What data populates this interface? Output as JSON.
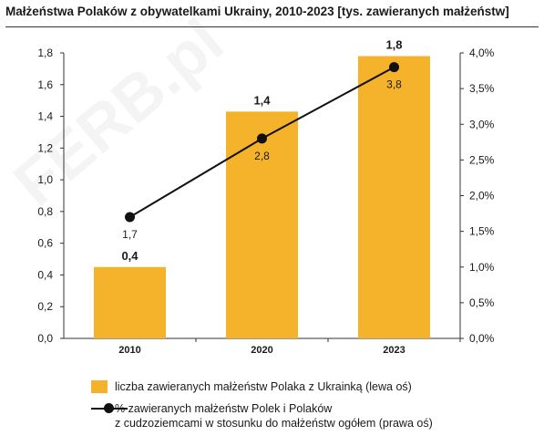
{
  "title": "Małżeństwa Polaków z obywatelkami Ukrainy, 2010-2023 [tys. zawieranych małżeństw]",
  "watermark": "FERB.pl",
  "colors": {
    "bar": "#F5B32B",
    "line": "#111111"
  },
  "chart_data": {
    "type": "bar",
    "categories": [
      "2010",
      "2020",
      "2023"
    ],
    "series": [
      {
        "name": "liczba zawieranych małżeństw Polaka z Ukrainką (lewa oś)",
        "type": "bar",
        "axis": "left",
        "values": [
          0.45,
          1.43,
          1.78
        ],
        "labels": [
          "0,4",
          "1,4",
          "1,8"
        ]
      },
      {
        "name": "% zawieranych małżeństw Polek i Polaków z cudzoziemcami w stosunku do małżeństw ogółem (prawa oś)",
        "type": "line",
        "axis": "right",
        "values": [
          1.7,
          2.8,
          3.8
        ],
        "labels": [
          "1,7",
          "2,8",
          "3,8"
        ]
      }
    ],
    "left_axis": {
      "ylim": [
        0,
        1.8
      ],
      "ticks": [
        "0,0",
        "0,2",
        "0,4",
        "0,6",
        "0,8",
        "1,0",
        "1,2",
        "1,4",
        "1,6",
        "1,8"
      ]
    },
    "right_axis": {
      "ylim": [
        0,
        4.0
      ],
      "ticks": [
        "0,0%",
        "0,5%",
        "1,0%",
        "1,5%",
        "2,0%",
        "2,5%",
        "3,0%",
        "3,5%",
        "4,0%"
      ]
    },
    "grid": false,
    "legend": "bottom"
  },
  "legend": {
    "bar": "liczba zawieranych małżeństw Polaka z Ukrainką (lewa oś)",
    "line_1": "% zawieranych małżeństw Polek i Polaków",
    "line_2": "z cudzoziemcami w stosunku do małżeństw ogółem (prawa oś)"
  }
}
